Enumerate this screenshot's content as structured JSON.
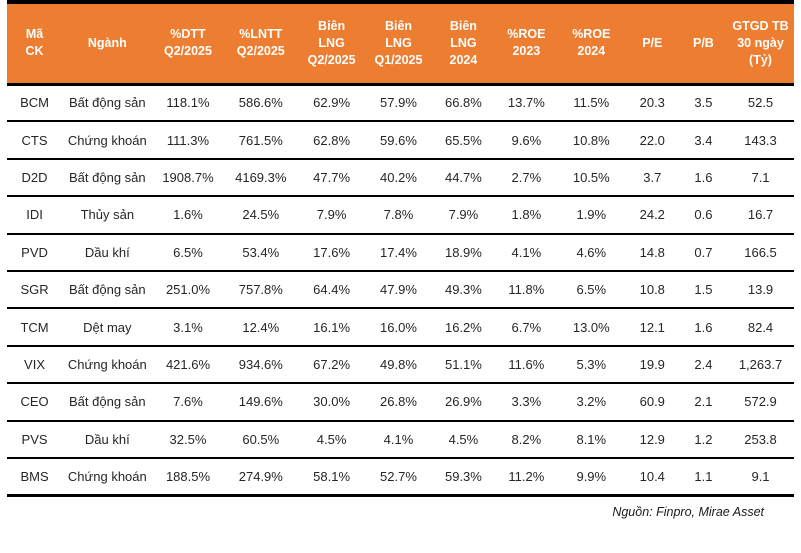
{
  "chart_data": {
    "type": "table",
    "columns": [
      "Mã CK",
      "Ngành",
      "%DTT Q2/2025",
      "%LNTT Q2/2025",
      "Biên LNG Q2/2025",
      "Biên LNG Q1/2025",
      "Biên LNG 2024",
      "%ROE 2023",
      "%ROE 2024",
      "P/E",
      "P/B",
      "GTGD TB 30 ngày (Tỷ)"
    ],
    "rows": [
      [
        "BCM",
        "Bất động sản",
        "118.1%",
        "586.6%",
        "62.9%",
        "57.9%",
        "66.8%",
        "13.7%",
        "11.5%",
        "20.3",
        "3.5",
        "52.5"
      ],
      [
        "CTS",
        "Chứng khoán",
        "111.3%",
        "761.5%",
        "62.8%",
        "59.6%",
        "65.5%",
        "9.6%",
        "10.8%",
        "22.0",
        "3.4",
        "143.3"
      ],
      [
        "D2D",
        "Bất động sản",
        "1908.7%",
        "4169.3%",
        "47.7%",
        "40.2%",
        "44.7%",
        "2.7%",
        "10.5%",
        "3.7",
        "1.6",
        "7.1"
      ],
      [
        "IDI",
        "Thủy sản",
        "1.6%",
        "24.5%",
        "7.9%",
        "7.8%",
        "7.9%",
        "1.8%",
        "1.9%",
        "24.2",
        "0.6",
        "16.7"
      ],
      [
        "PVD",
        "Dầu khí",
        "6.5%",
        "53.4%",
        "17.6%",
        "17.4%",
        "18.9%",
        "4.1%",
        "4.6%",
        "14.8",
        "0.7",
        "166.5"
      ],
      [
        "SGR",
        "Bất động sản",
        "251.0%",
        "757.8%",
        "64.4%",
        "47.9%",
        "49.3%",
        "11.8%",
        "6.5%",
        "10.8",
        "1.5",
        "13.9"
      ],
      [
        "TCM",
        "Dệt may",
        "3.1%",
        "12.4%",
        "16.1%",
        "16.0%",
        "16.2%",
        "6.7%",
        "13.0%",
        "12.1",
        "1.6",
        "82.4"
      ],
      [
        "VIX",
        "Chứng khoán",
        "421.6%",
        "934.6%",
        "67.2%",
        "49.8%",
        "51.1%",
        "11.6%",
        "5.3%",
        "19.9",
        "2.4",
        "1,263.7"
      ],
      [
        "CEO",
        "Bất động sản",
        "7.6%",
        "149.6%",
        "30.0%",
        "26.8%",
        "26.9%",
        "3.3%",
        "3.2%",
        "60.9",
        "2.1",
        "572.9"
      ],
      [
        "PVS",
        "Dầu khí",
        "32.5%",
        "60.5%",
        "4.5%",
        "4.1%",
        "4.5%",
        "8.2%",
        "8.1%",
        "12.9",
        "1.2",
        "253.8"
      ],
      [
        "BMS",
        "Chứng khoán",
        "188.5%",
        "274.9%",
        "58.1%",
        "52.7%",
        "59.3%",
        "11.2%",
        "9.9%",
        "10.4",
        "1.1",
        "9.1"
      ]
    ],
    "layout": {
      "header_background": "#ED7D31",
      "grid": "horizontal-only",
      "source_position": "bottom-right"
    }
  },
  "header_display": [
    "Mã\nCK",
    "Ngành",
    "%DTT\nQ2/2025",
    "%LNTT\nQ2/2025",
    "Biên\nLNG\nQ2/2025",
    "Biên\nLNG\nQ1/2025",
    "Biên\nLNG\n2024",
    "%ROE\n2023",
    "%ROE\n2024",
    "P/E",
    "P/B",
    "GTGD TB\n30 ngày\n(Tỷ)"
  ],
  "footer": {
    "source": "Nguồn: Finpro, Mirae Asset"
  },
  "colors": {
    "header_bg": "#ED7D31",
    "header_text": "#FFFFFF",
    "body_text": "#262626",
    "border": "#000000",
    "background": "#FFFFFF"
  }
}
